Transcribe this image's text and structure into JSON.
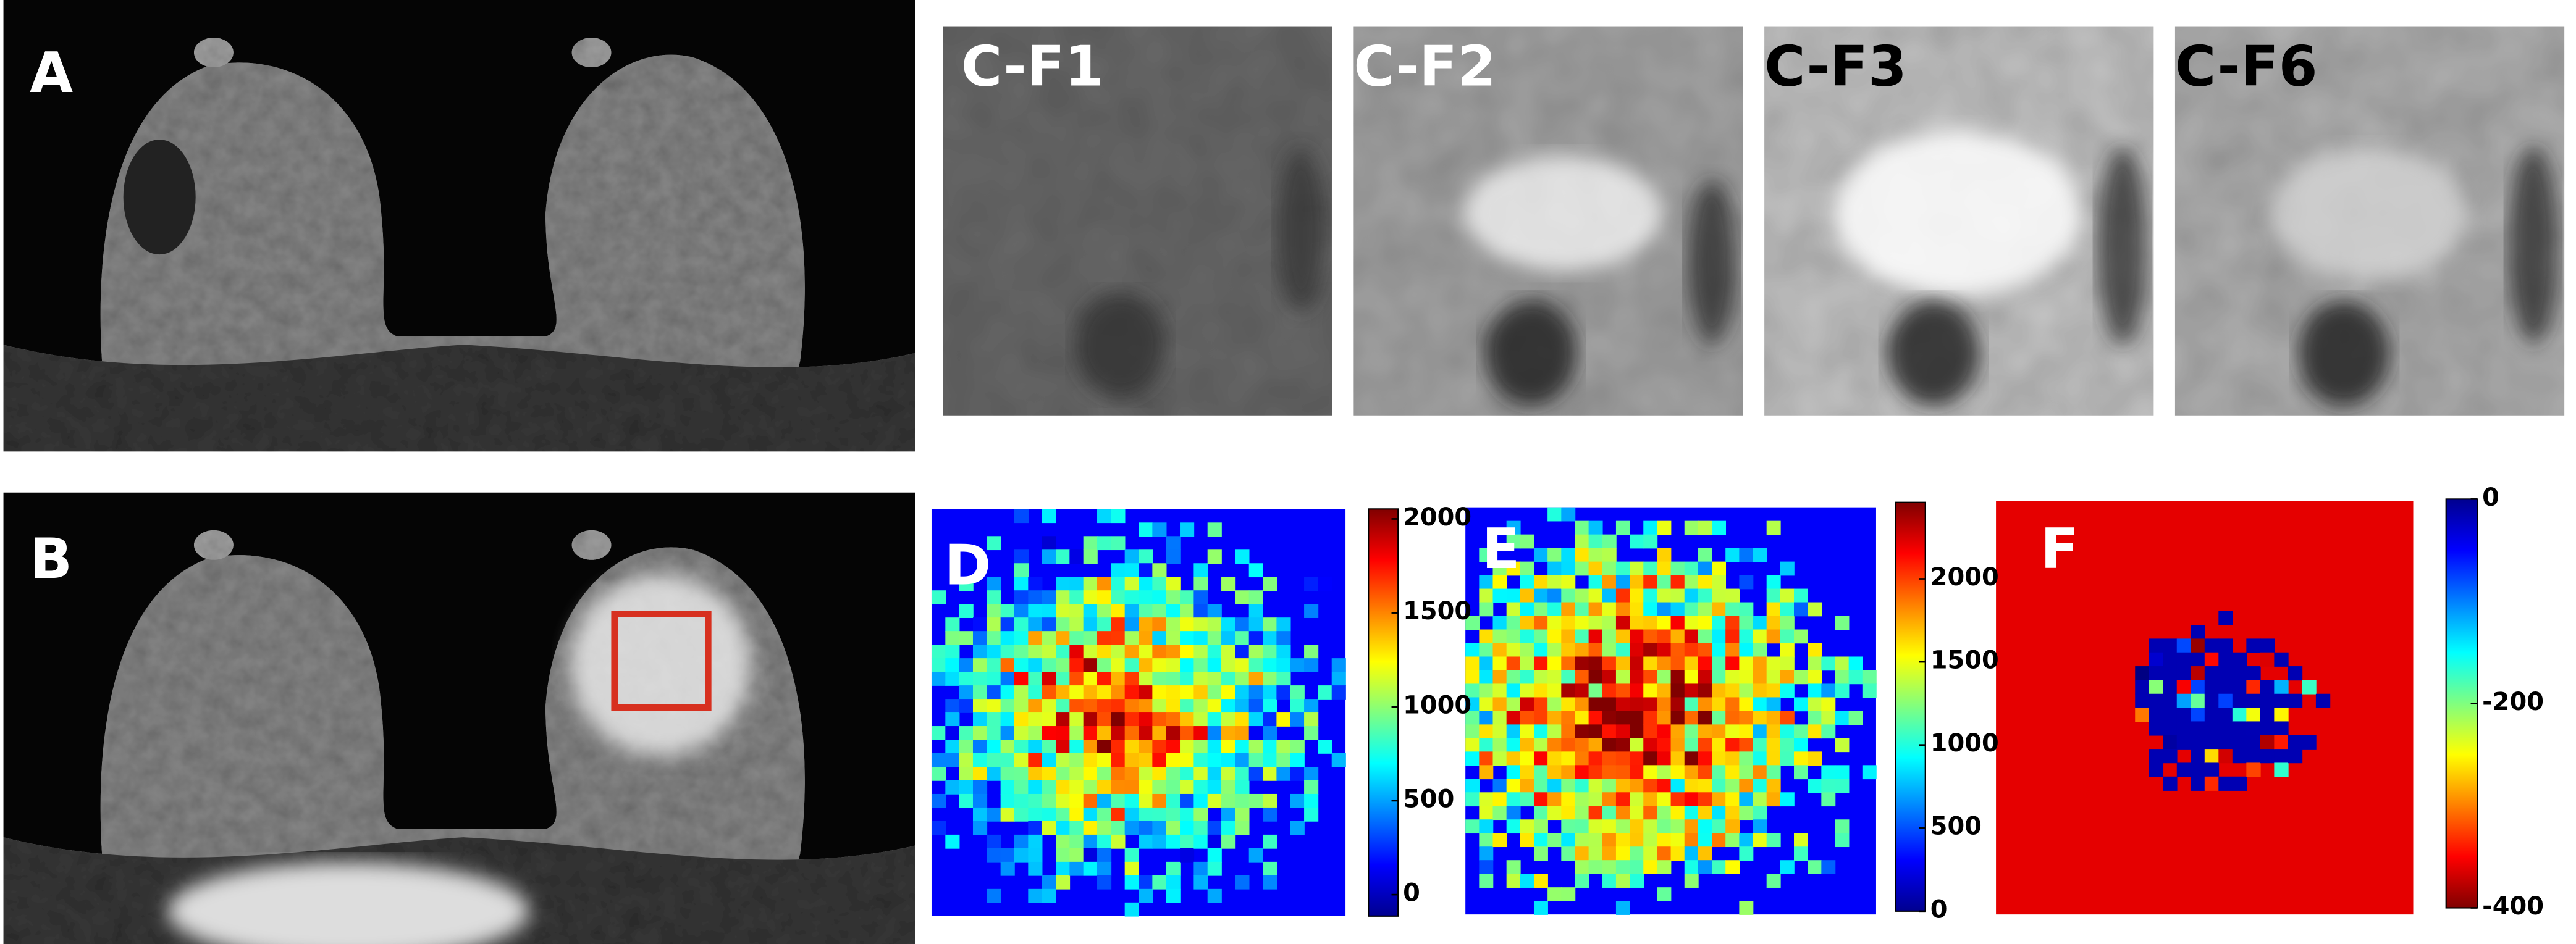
{
  "labels": {
    "a": "A",
    "b": "B",
    "d": "D",
    "e": "E",
    "f": "F"
  },
  "crops": [
    "C-F1",
    "C-F2",
    "C-F3",
    "C-F6"
  ],
  "colorbars": [
    {
      "lim": [
        -114,
        2053
      ],
      "ticks": [
        0,
        500,
        1000,
        1500,
        2000
      ]
    },
    {
      "lim": [
        0,
        2460
      ],
      "ticks": [
        0,
        500,
        1000,
        1500,
        2000
      ]
    },
    {
      "lim": [
        -400,
        0
      ],
      "ticks": [
        -400,
        -200,
        0
      ]
    }
  ]
}
